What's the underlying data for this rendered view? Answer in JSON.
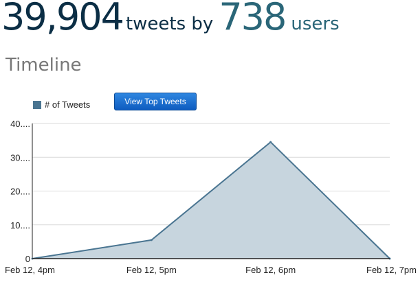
{
  "header": {
    "tweet_count": "39,904",
    "tweets_by_label": "tweets by",
    "user_count": "738",
    "users_label": "users"
  },
  "section_title": "Timeline",
  "buttons": {
    "view_top_tweets": "View Top Tweets"
  },
  "colors": {
    "line": "#4a7591",
    "fill": "#c7d5de",
    "button": "#1b6fd0"
  },
  "chart_data": {
    "type": "area",
    "title": "",
    "xlabel": "",
    "ylabel": "",
    "x": [
      "Feb 12, 4pm",
      "Feb 12, 5pm",
      "Feb 12, 6pm",
      "Feb 12, 7pm"
    ],
    "x_tick_labels": [
      "Feb 12, 4pm",
      "Feb 12, 5pm",
      "Feb 12, 6pm",
      "Feb 12, 7pm"
    ],
    "y_tick_labels": [
      "0",
      "10....",
      "20....",
      "30....",
      "40...."
    ],
    "y_ticks": [
      0,
      10,
      20,
      30,
      40
    ],
    "ylim": [
      0,
      40
    ],
    "grid": true,
    "legend": "top-left",
    "series": [
      {
        "name": "# of Tweets",
        "values": [
          0,
          5.5,
          34.5,
          0
        ]
      }
    ]
  }
}
